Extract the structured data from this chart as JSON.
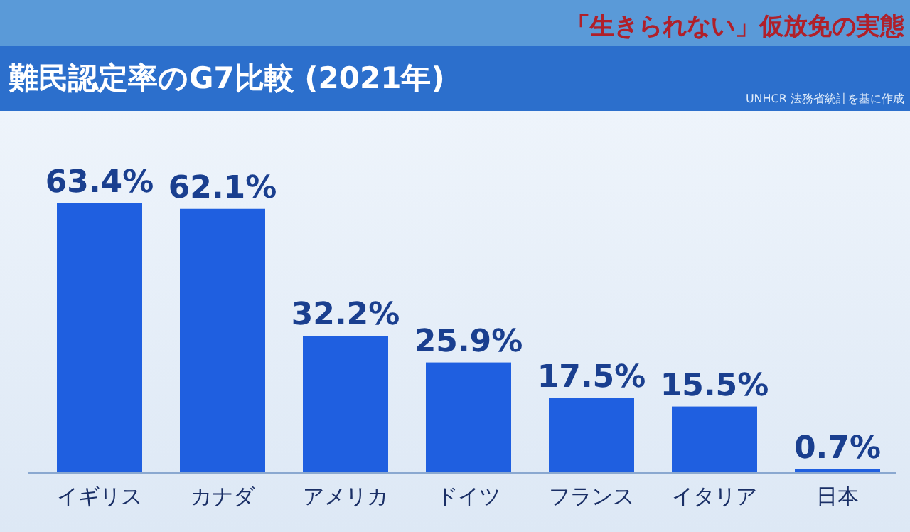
{
  "chart_data": {
    "type": "bar",
    "title": "難民認定率のG7比較 (2021年)",
    "annotations": [
      "UNHCR 法務省統計を基に作成",
      "「生きられない」仮放免の実態"
    ],
    "categories": [
      "イギリス",
      "カナダ",
      "アメリカ",
      "ドイツ",
      "フランス",
      "イタリア",
      "日本"
    ],
    "values": [
      63.4,
      62.1,
      32.2,
      25.9,
      17.5,
      15.5,
      0.7
    ],
    "value_labels": [
      "63.4%",
      "62.1%",
      "32.2%",
      "25.9%",
      "17.5%",
      "15.5%",
      "0.7%"
    ],
    "color": "#1f5fe0"
  }
}
